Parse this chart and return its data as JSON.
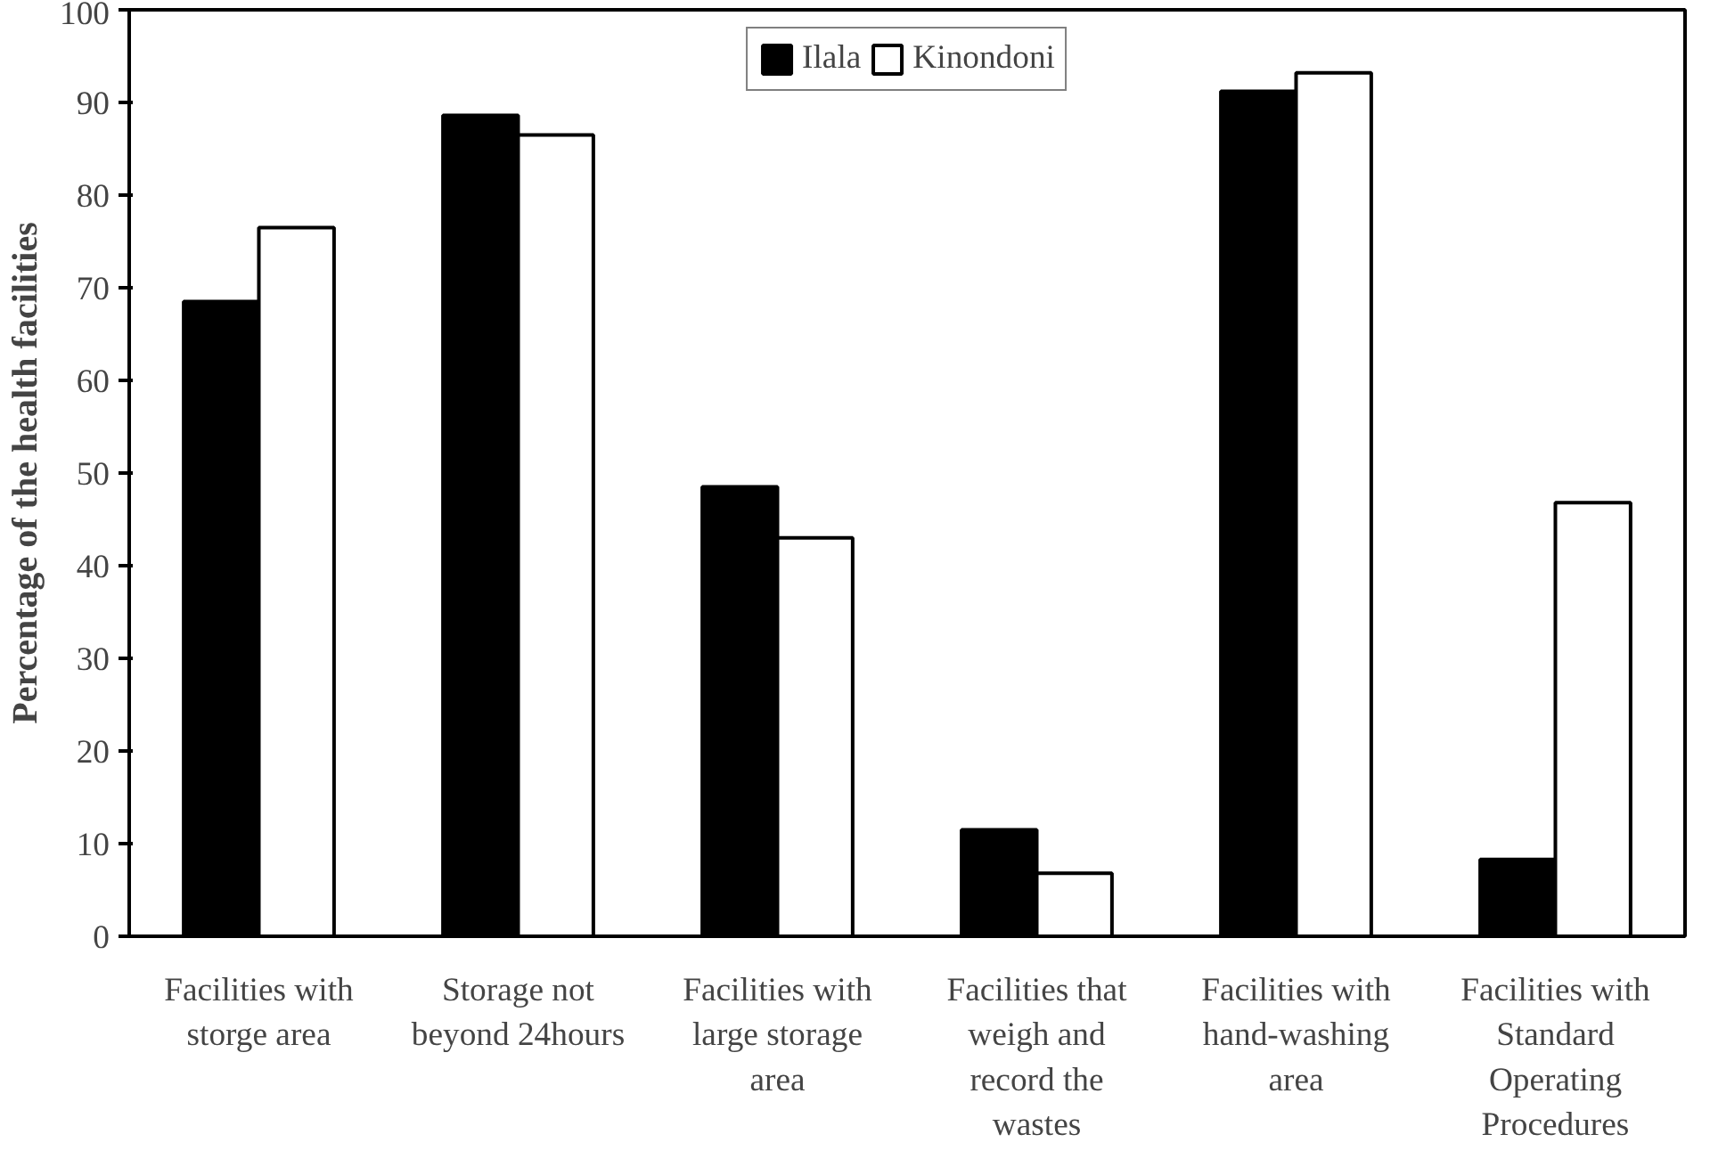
{
  "chart_data": {
    "type": "bar",
    "ylabel": "Percentage of the health facilities",
    "categories": [
      "Facilities with storge area",
      "Storage not beyond 24hours",
      "Facilities with large storage area",
      "Facilities that weigh and record the wastes",
      "Facilities with hand-washing area",
      "Facilities with Standard Operating Procedures"
    ],
    "series": [
      {
        "name": "Ilala",
        "color": "#000000",
        "values": [
          68.5,
          88.6,
          48.5,
          11.5,
          91.2,
          8.3
        ]
      },
      {
        "name": "Kinondoni",
        "color": "#ffffff",
        "values": [
          76.5,
          86.5,
          43,
          6.8,
          93.2,
          46.8
        ]
      }
    ],
    "ylim": [
      0,
      100
    ],
    "yticks": [
      0,
      10,
      20,
      30,
      40,
      50,
      60,
      70,
      80,
      90,
      100
    ],
    "grid": false,
    "legend": "top"
  }
}
